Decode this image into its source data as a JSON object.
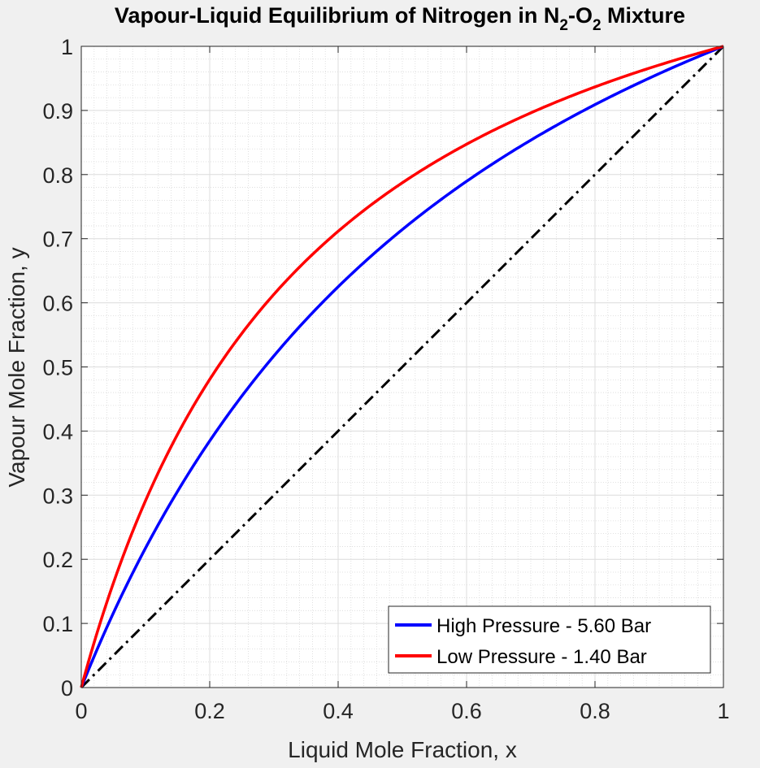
{
  "chart_data": {
    "type": "line",
    "title": "Vapour-Liquid Equilibrium of Nitrogen in N2-O2 Mixture",
    "title_parts": {
      "t1": "Vapour-Liquid Equilibrium of Nitrogen in N",
      "s1": "2",
      "t2": "-O",
      "s2": "2",
      "t3": " Mixture"
    },
    "xlabel": "Liquid Mole Fraction, x",
    "ylabel": "Vapour Mole Fraction, y",
    "xlim": [
      0,
      1
    ],
    "ylim": [
      0,
      1
    ],
    "xticks": [
      "0",
      "0.2",
      "0.4",
      "0.6",
      "0.8",
      "1"
    ],
    "yticks": [
      "0",
      "0.1",
      "0.2",
      "0.3",
      "0.4",
      "0.5",
      "0.6",
      "0.7",
      "0.8",
      "0.9",
      "1"
    ],
    "grid": true,
    "minor_grid": true,
    "legend_position": "bottom-right",
    "series": [
      {
        "name": "High Pressure - 5.60 Bar",
        "color": "#0000ff",
        "style": "solid",
        "relative_volatility": 2.5,
        "x": [
          0,
          0.1,
          0.2,
          0.3,
          0.4,
          0.5,
          0.6,
          0.7,
          0.8,
          0.9,
          1
        ],
        "y": [
          0,
          0.217,
          0.385,
          0.517,
          0.625,
          0.714,
          0.789,
          0.854,
          0.909,
          0.957,
          1
        ]
      },
      {
        "name": "Low Pressure - 1.40 Bar",
        "color": "#ff0000",
        "style": "solid",
        "relative_volatility": 3.7,
        "x": [
          0,
          0.1,
          0.2,
          0.3,
          0.4,
          0.5,
          0.6,
          0.7,
          0.8,
          0.9,
          1
        ],
        "y": [
          0,
          0.291,
          0.481,
          0.613,
          0.712,
          0.787,
          0.847,
          0.896,
          0.937,
          0.971,
          1
        ]
      },
      {
        "name": "y = x",
        "color": "#000000",
        "style": "dash-dot",
        "show_in_legend": false,
        "x": [
          0,
          1
        ],
        "y": [
          0,
          1
        ]
      }
    ]
  }
}
